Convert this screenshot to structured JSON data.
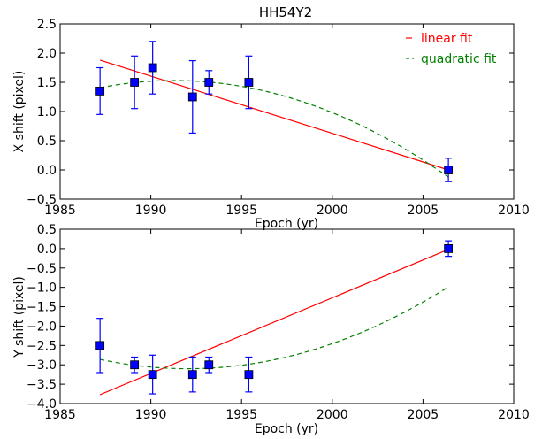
{
  "chart_data": [
    {
      "type": "scatter",
      "title": "HH54Y2",
      "xlabel": "Epoch (yr)",
      "ylabel": "X shift (pixel)",
      "xlim": [
        1985,
        2010
      ],
      "ylim": [
        -0.5,
        2.5
      ],
      "xticks": [
        1985,
        1990,
        1995,
        2000,
        2005,
        2010
      ],
      "yticks": [
        -0.5,
        0.0,
        0.5,
        1.0,
        1.5,
        2.0,
        2.5
      ],
      "xtick_labels": [
        "1985",
        "1990",
        "1995",
        "2000",
        "2005",
        "2010"
      ],
      "ytick_labels": [
        "−0.5",
        "0.0",
        "0.5",
        "1.0",
        "1.5",
        "2.0",
        "2.5"
      ],
      "points": [
        {
          "x": 1987.2,
          "y": 1.35,
          "yerr": 0.4
        },
        {
          "x": 1989.1,
          "y": 1.5,
          "yerr": 0.45
        },
        {
          "x": 1990.1,
          "y": 1.75,
          "yerr": 0.45
        },
        {
          "x": 1992.3,
          "y": 1.25,
          "yerr": 0.62
        },
        {
          "x": 1993.2,
          "y": 1.5,
          "yerr": 0.2
        },
        {
          "x": 1995.4,
          "y": 1.5,
          "yerr": 0.45
        },
        {
          "x": 2006.4,
          "y": 0.0,
          "yerr": 0.2
        }
      ],
      "linear_fit": [
        [
          1987.2,
          1.88
        ],
        [
          2006.4,
          0.0
        ]
      ],
      "quadratic_fit": {
        "a": -0.00725,
        "vertex_x": 1991.3,
        "vertex_y": 1.53,
        "x_range": [
          1987.2,
          2006.4
        ]
      },
      "legend": {
        "placement": "top-right",
        "entries": [
          {
            "label": "linear fit",
            "color": "#ff0000",
            "dash": false
          },
          {
            "label": "quadratic fit",
            "color": "#008000",
            "dash": true
          }
        ]
      }
    },
    {
      "type": "scatter",
      "xlabel": "Epoch (yr)",
      "ylabel": "Y shift (pixel)",
      "xlim": [
        1985,
        2010
      ],
      "ylim": [
        -4.0,
        0.5
      ],
      "xticks": [
        1985,
        1990,
        1995,
        2000,
        2005,
        2010
      ],
      "yticks": [
        -4.0,
        -3.5,
        -3.0,
        -2.5,
        -2.0,
        -1.5,
        -1.0,
        -0.5,
        0.0,
        0.5
      ],
      "xtick_labels": [
        "1985",
        "1990",
        "1995",
        "2000",
        "2005",
        "2010"
      ],
      "ytick_labels": [
        "−4.0",
        "−3.5",
        "−3.0",
        "−2.5",
        "−2.0",
        "−1.5",
        "−1.0",
        "−0.5",
        "0.0",
        "0.5"
      ],
      "points": [
        {
          "x": 1987.2,
          "y": -2.5,
          "yerr": 0.7
        },
        {
          "x": 1989.1,
          "y": -3.0,
          "yerr": 0.2
        },
        {
          "x": 1990.1,
          "y": -3.25,
          "yerr": 0.5
        },
        {
          "x": 1992.3,
          "y": -3.25,
          "yerr": 0.45
        },
        {
          "x": 1993.2,
          "y": -3.0,
          "yerr": 0.2
        },
        {
          "x": 1995.4,
          "y": -3.25,
          "yerr": 0.45
        },
        {
          "x": 2006.4,
          "y": 0.0,
          "yerr": 0.2
        }
      ],
      "linear_fit": [
        [
          1987.2,
          -3.77
        ],
        [
          2006.4,
          -0.02
        ]
      ],
      "quadratic_fit": {
        "a": 0.01025,
        "vertex_x": 1992.05,
        "vertex_y": -3.1,
        "x_range": [
          1987.2,
          2006.4
        ]
      }
    }
  ],
  "colors": {
    "marker": "#0000ff",
    "errorbar": "#0000ff",
    "linear": "#ff0000",
    "quadratic": "#008000"
  }
}
